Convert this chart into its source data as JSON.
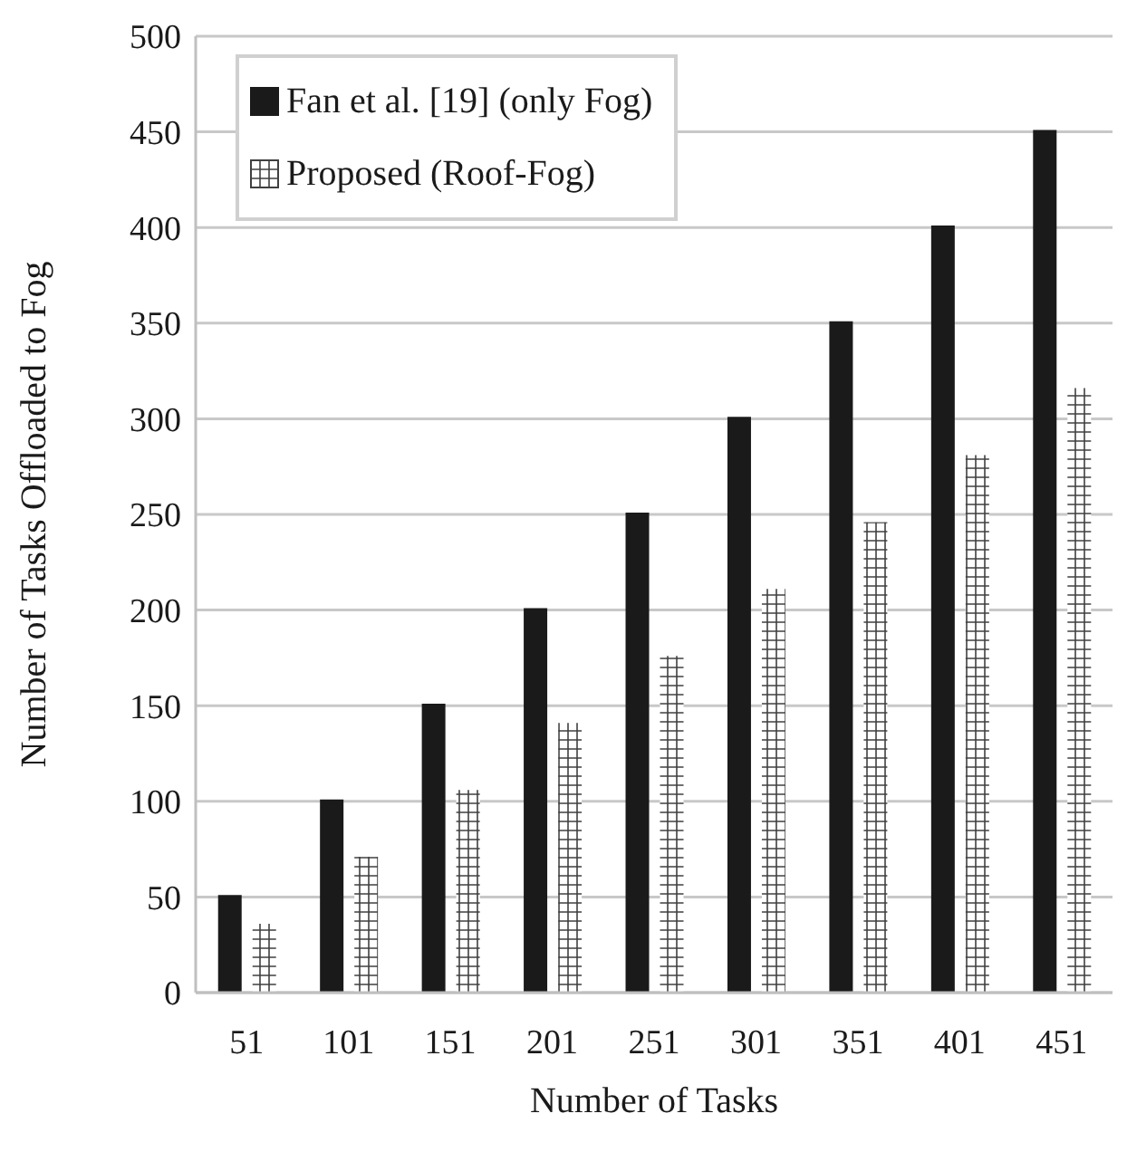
{
  "chart_data": {
    "type": "bar",
    "xlabel": "Number of Tasks",
    "ylabel": "Number of Tasks Offloaded to Fog",
    "categories": [
      "51",
      "101",
      "151",
      "201",
      "251",
      "301",
      "351",
      "401",
      "451"
    ],
    "series": [
      {
        "name": "Fan et al. [19] (only Fog)",
        "color": "#1a1a1a",
        "values": [
          51,
          101,
          151,
          201,
          251,
          301,
          351,
          401,
          451
        ]
      },
      {
        "name": "Proposed (Roof-Fog)",
        "color": "#ffffff",
        "values": [
          36,
          71,
          106,
          141,
          176,
          211,
          246,
          281,
          316
        ]
      }
    ],
    "ylim": [
      0,
      500
    ],
    "yticks": [
      0,
      50,
      100,
      150,
      200,
      250,
      300,
      350,
      400,
      450,
      500
    ],
    "grid": "y",
    "legend": "top left"
  }
}
